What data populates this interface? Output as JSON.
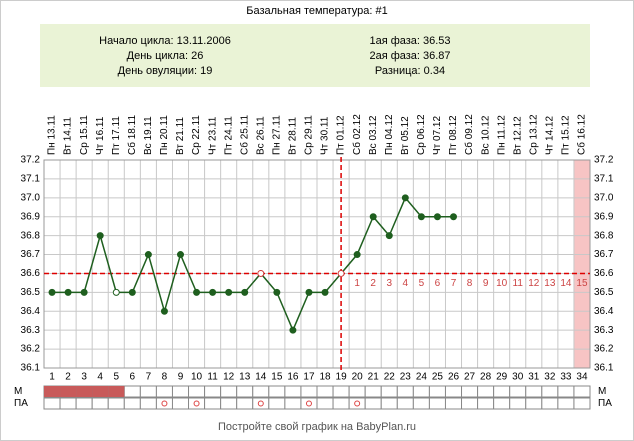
{
  "chart_data": {
    "type": "line",
    "title": "Базальная температура: #1",
    "info_left": [
      "Начало цикла: 13.11.2006",
      "День цикла: 26",
      "День овуляции: 19"
    ],
    "info_right": [
      "1ая фаза: 36.53",
      "2ая фаза: 36.87",
      "Разница: 0.34"
    ],
    "categories": [
      "Пн 13.11",
      "Вт 14.11",
      "Ср 15.11",
      "Чт 16.11",
      "Пт 17.11",
      "Сб 18.11",
      "Вс 19.11",
      "Пн 20.11",
      "Вт 21.11",
      "Ср 22.11",
      "Чт 23.11",
      "Пт 24.11",
      "Сб 25.11",
      "Вс 26.11",
      "Пн 27.11",
      "Вт 28.11",
      "Ср 29.11",
      "Чт 30.11",
      "Пт 01.12",
      "Сб 02.12",
      "Вс 03.12",
      "Пн 04.12",
      "Вт 05.12",
      "Ср 06.12",
      "Чт 07.12",
      "Пт 08.12",
      "Сб 09.12",
      "Вс 10.12",
      "Пн 11.12",
      "Вт 12.12",
      "Ср 13.12",
      "Чт 14.12",
      "Пт 15.12",
      "Сб 16.12"
    ],
    "day_numbers": [
      1,
      2,
      3,
      4,
      5,
      6,
      7,
      8,
      9,
      10,
      11,
      12,
      13,
      14,
      15,
      16,
      17,
      18,
      19,
      20,
      21,
      22,
      23,
      24,
      25,
      26,
      27,
      28,
      29,
      30,
      31,
      32,
      33,
      34
    ],
    "series": [
      {
        "name": "Температура",
        "color": "#1f5f1f",
        "values": [
          36.5,
          36.5,
          36.5,
          36.8,
          36.5,
          36.5,
          36.7,
          36.4,
          36.7,
          36.5,
          36.5,
          36.5,
          36.5,
          36.6,
          36.5,
          36.3,
          36.5,
          36.5,
          36.6,
          36.7,
          36.9,
          36.8,
          37.0,
          36.9,
          36.9,
          36.9,
          null,
          null,
          null,
          null,
          null,
          null,
          null,
          null
        ]
      }
    ],
    "hollow_days": [
      5,
      14,
      19
    ],
    "ylim": [
      36.1,
      37.2
    ],
    "yticks": [
      36.1,
      36.2,
      36.3,
      36.4,
      36.5,
      36.6,
      36.7,
      36.8,
      36.9,
      {
        "value": 37,
        "label": "37.0"
      },
      37.1,
      37.2
    ],
    "coverline": 36.6,
    "ovulation_day": 19,
    "luteal_days": [
      1,
      2,
      3,
      4,
      5,
      6,
      7,
      8,
      9,
      10,
      11,
      12,
      13,
      14,
      15
    ],
    "highlight_day": 34,
    "row_labels": [
      "М",
      "ПА"
    ],
    "menstruation_days": [
      1,
      2,
      3,
      4,
      5
    ],
    "intercourse_days": [
      8,
      10,
      14,
      17,
      20
    ],
    "footer": "Постройте свой график на BabyPlan.ru",
    "grid": true
  }
}
